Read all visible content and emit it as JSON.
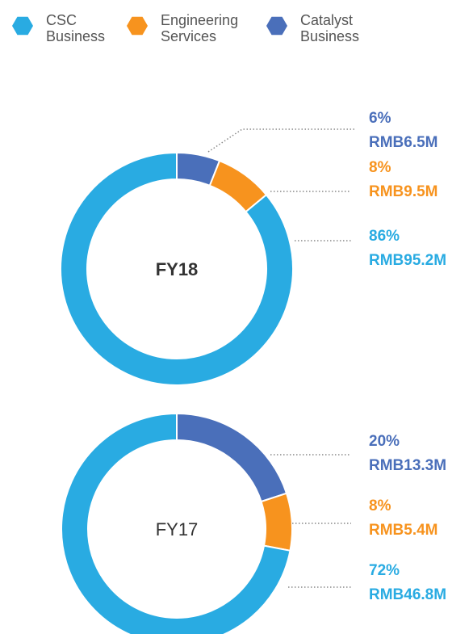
{
  "chart_data": [
    {
      "type": "pie",
      "title": "FY18",
      "categories": [
        "Catalyst Business",
        "Engineering Services",
        "CSC Business"
      ],
      "colors": [
        "#4a6fba",
        "#f7931e",
        "#29abe2"
      ],
      "values": [
        6,
        8,
        86
      ],
      "value_labels": [
        "6%",
        "8%",
        "86%"
      ],
      "amounts": [
        6.5,
        9.5,
        95.2
      ],
      "amount_labels": [
        "RMB6.5M",
        "RMB9.5M",
        "RMB95.2M"
      ]
    },
    {
      "type": "pie",
      "title": "FY17",
      "categories": [
        "Catalyst Business",
        "Engineering Services",
        "CSC Business"
      ],
      "colors": [
        "#4a6fba",
        "#f7931e",
        "#29abe2"
      ],
      "values": [
        20,
        8,
        72
      ],
      "value_labels": [
        "20%",
        "8%",
        "72%"
      ],
      "amounts": [
        13.3,
        5.4,
        46.8
      ],
      "amount_labels": [
        "RMB13.3M",
        "RMB5.4M",
        "RMB46.8M"
      ]
    }
  ]
}
